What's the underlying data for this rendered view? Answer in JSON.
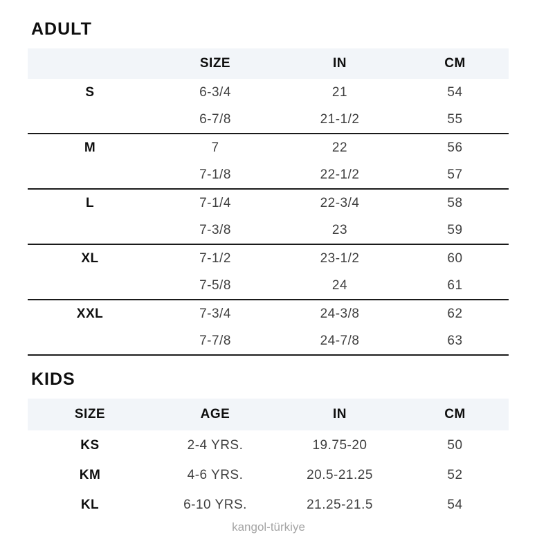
{
  "page": {
    "footer": "kangol-türkiye"
  },
  "colors": {
    "header_row_bg": "#f2f5f9",
    "group_rule": "#1a1a1a",
    "data_text": "#3f3f3f",
    "bold_text": "#0e0e0e",
    "footer_text": "#a5a5a5"
  },
  "adult": {
    "title": "ADULT",
    "columns": [
      "",
      "SIZE",
      "IN",
      "CM"
    ],
    "groups": [
      {
        "label": "S",
        "rows": [
          [
            "6-3/4",
            "21",
            "54"
          ],
          [
            "6-7/8",
            "21-1/2",
            "55"
          ]
        ]
      },
      {
        "label": "M",
        "rows": [
          [
            "7",
            "22",
            "56"
          ],
          [
            "7-1/8",
            "22-1/2",
            "57"
          ]
        ]
      },
      {
        "label": "L",
        "rows": [
          [
            "7-1/4",
            "22-3/4",
            "58"
          ],
          [
            "7-3/8",
            "23",
            "59"
          ]
        ]
      },
      {
        "label": "XL",
        "rows": [
          [
            "7-1/2",
            "23-1/2",
            "60"
          ],
          [
            "7-5/8",
            "24",
            "61"
          ]
        ]
      },
      {
        "label": "XXL",
        "rows": [
          [
            "7-3/4",
            "24-3/8",
            "62"
          ],
          [
            "7-7/8",
            "24-7/8",
            "63"
          ]
        ]
      }
    ]
  },
  "kids": {
    "title": "KIDS",
    "columns": [
      "SIZE",
      "AGE",
      "IN",
      "CM"
    ],
    "rows": [
      {
        "size": "KS",
        "age": "2-4 YRS.",
        "in": "19.75-20",
        "cm": "50"
      },
      {
        "size": "KM",
        "age": "4-6 YRS.",
        "in": "20.5-21.25",
        "cm": "52"
      },
      {
        "size": "KL",
        "age": "6-10 YRS.",
        "in": "21.25-21.5",
        "cm": "54"
      }
    ]
  }
}
